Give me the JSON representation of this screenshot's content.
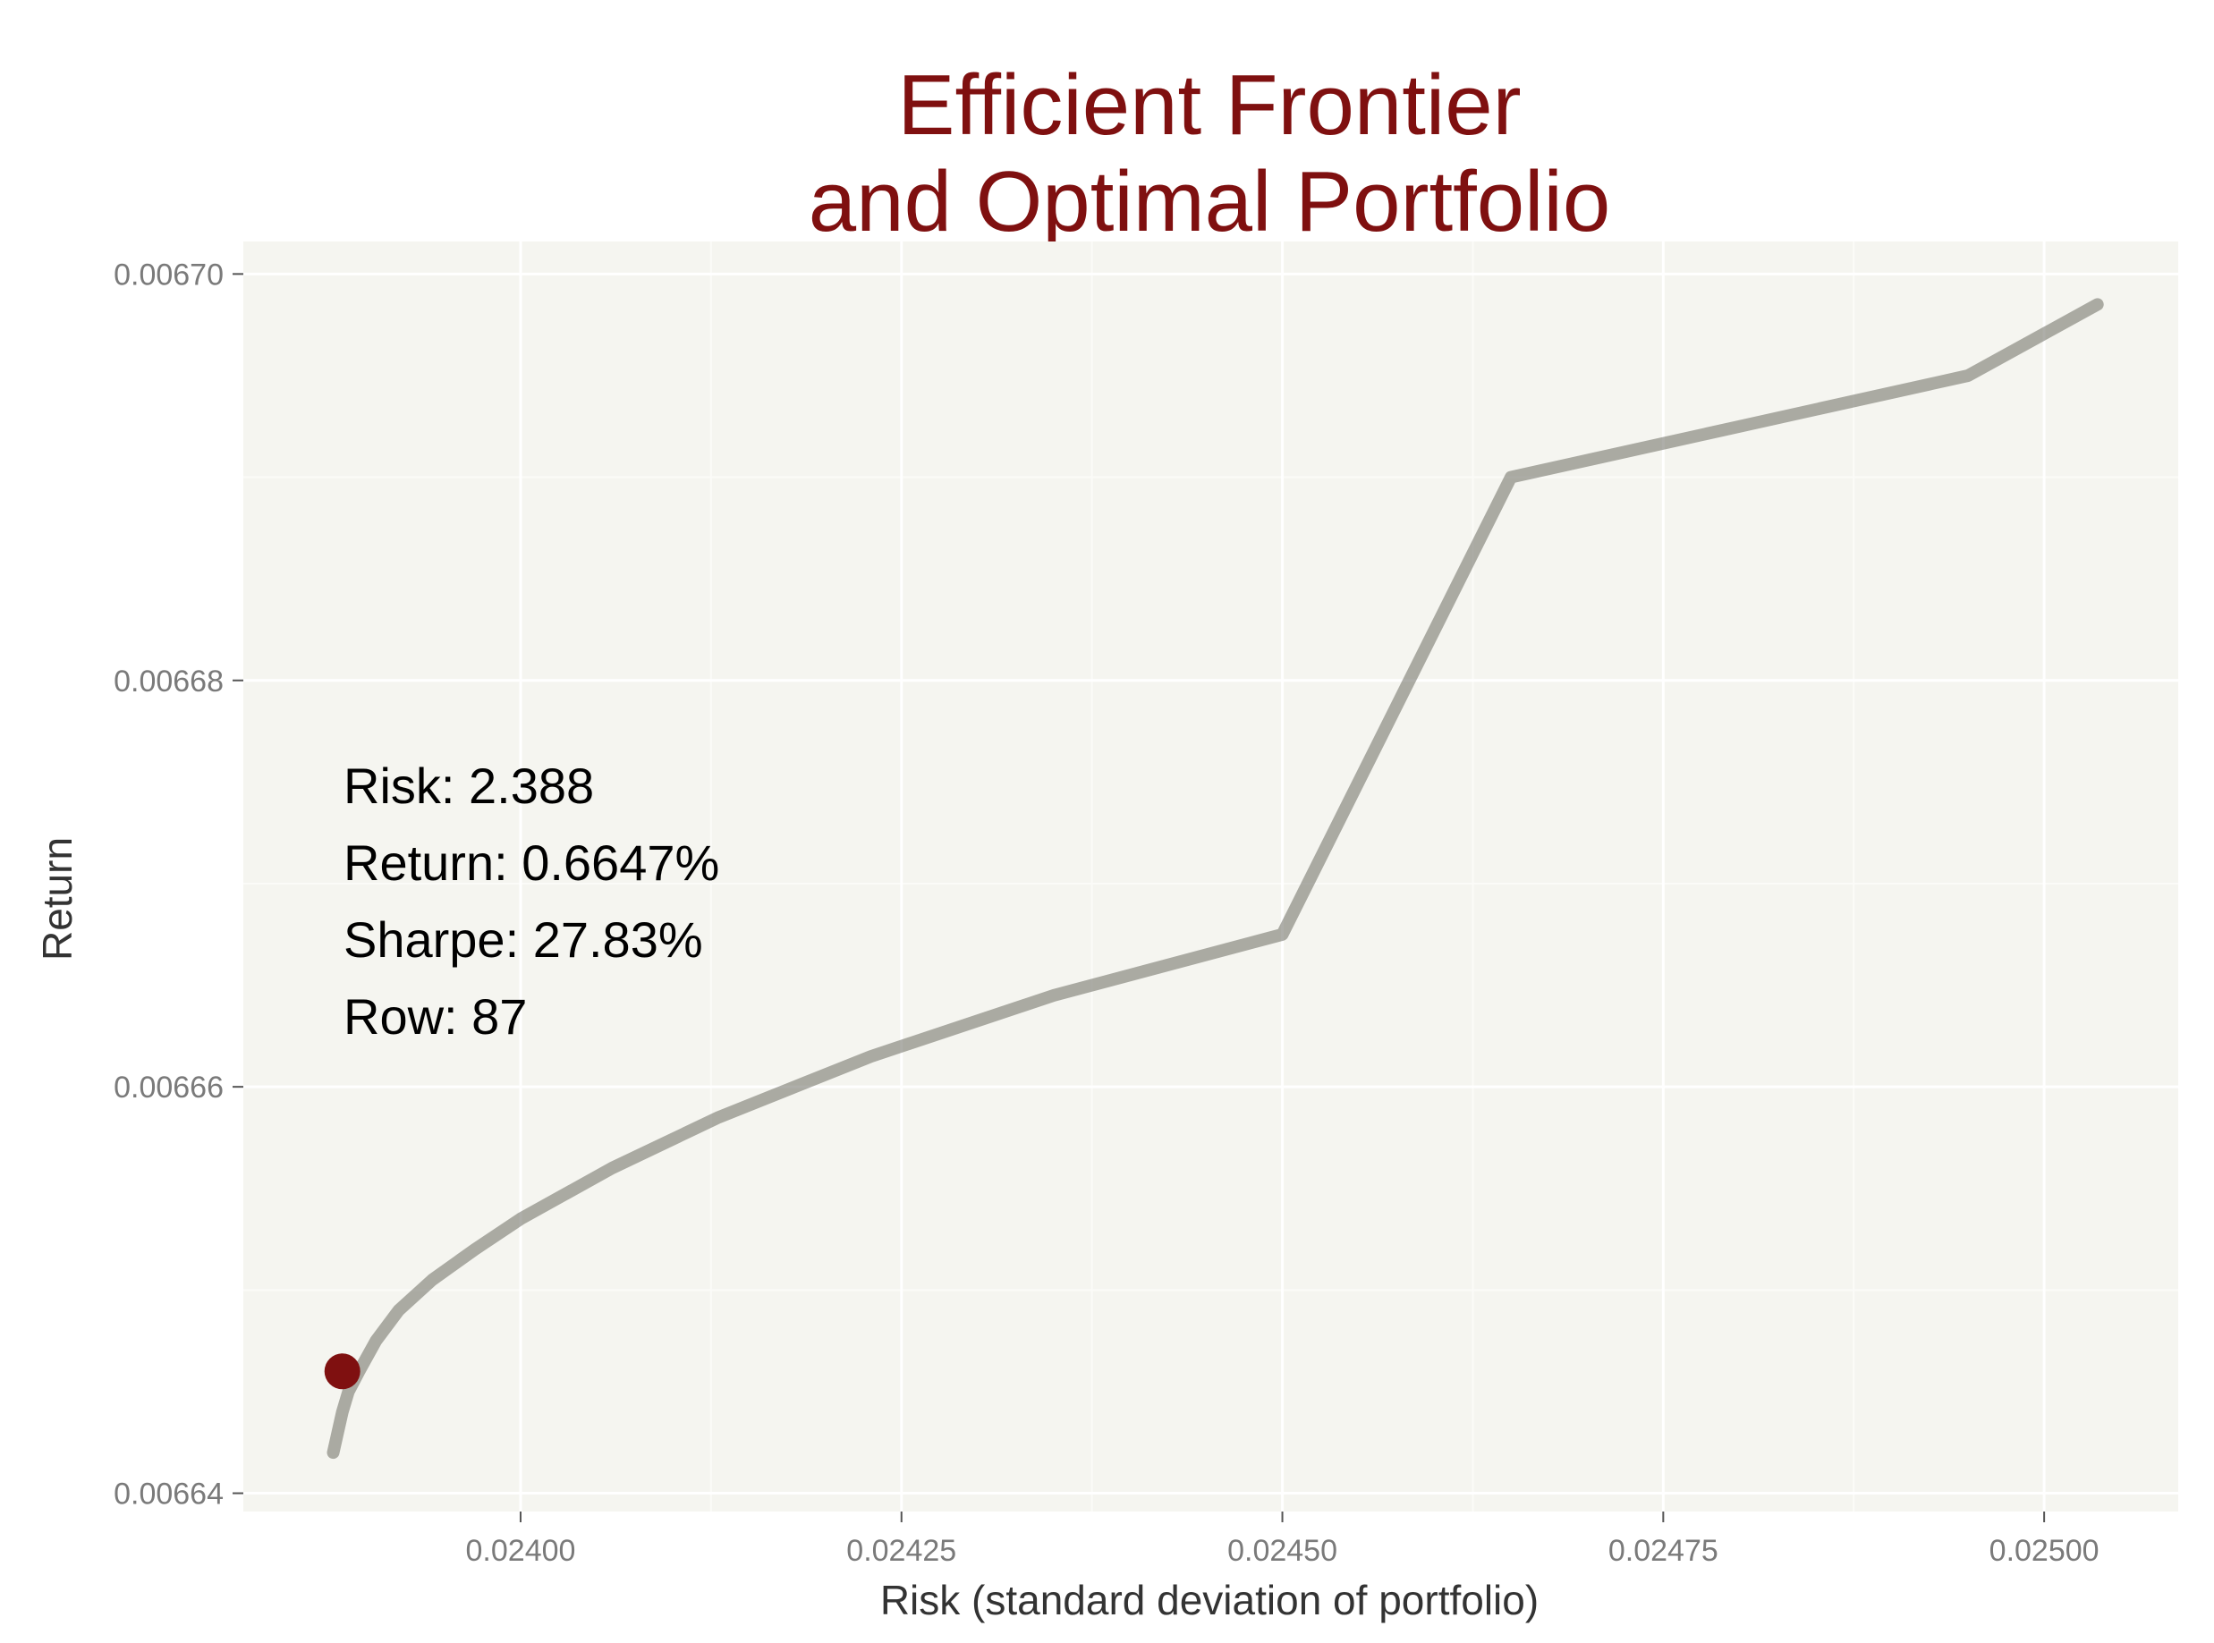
{
  "chart_data": {
    "type": "line",
    "title_lines": [
      "Efficient Frontier",
      "and Optimal Portfolio"
    ],
    "xlabel": "Risk (standard deviation of portfolio)",
    "ylabel": "Return",
    "xlim": [
      0.023818,
      0.025088
    ],
    "ylim": [
      0.0066391,
      0.0067016
    ],
    "x_ticks": [
      0.024,
      0.02425,
      0.0245,
      0.02475,
      0.025
    ],
    "x_tick_labels": [
      "0.02400",
      "0.02425",
      "0.02450",
      "0.02475",
      "0.02500"
    ],
    "y_ticks": [
      0.00664,
      0.00666,
      0.00668,
      0.0067
    ],
    "y_tick_labels": [
      "0.00664",
      "0.00666",
      "0.00668",
      "0.00670"
    ],
    "grid": true,
    "series": [
      {
        "x": [
          0.023877,
          0.02388,
          0.023883,
          0.023887,
          0.023894,
          0.023905,
          0.02392,
          0.023942,
          0.02397,
          0.024,
          0.02406,
          0.02413,
          0.02423,
          0.02435,
          0.0245,
          0.02465,
          0.0248,
          0.02495,
          0.025035
        ],
        "y": [
          0.006642,
          0.006643,
          0.006644,
          0.006645,
          0.006646,
          0.0066475,
          0.006649,
          0.0066505,
          0.006652,
          0.0066535,
          0.006656,
          0.0066585,
          0.0066615,
          0.0066645,
          0.0066675,
          0.00669,
          0.0066925,
          0.006695,
          0.0066985
        ],
        "color": "#6b6b63"
      }
    ],
    "optimal_point": {
      "x": 0.023883,
      "y": 0.006646,
      "color": "#7f1010"
    },
    "annotations": [
      "Risk: 2.388",
      "Return: 0.6647%",
      "Sharpe: 27.83%",
      "Row: 87"
    ],
    "colors": {
      "title": "#7f1010",
      "panel": "#f5f5f0",
      "grid": "#ffffff",
      "curve": "#6b6b63",
      "point": "#7f1010"
    }
  }
}
